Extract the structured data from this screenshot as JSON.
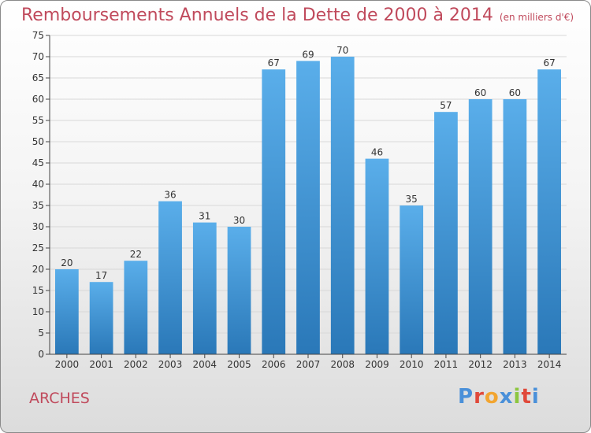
{
  "header": {
    "title": "Remboursements Annuels de la Dette de 2000 à 2014",
    "unit": "(en milliers d'€)"
  },
  "footer": {
    "town": "ARCHES",
    "logo_text": "Proxiti",
    "logo_colors": [
      "#4a90d9",
      "#e0493a",
      "#f2a530",
      "#4a90d9",
      "#8cc63f",
      "#e0493a",
      "#4a90d9"
    ]
  },
  "colors": {
    "title": "#c04a5c",
    "bar_top": "#5aaeea",
    "bar_bottom": "#2a78b8",
    "grid": "#d8d8d8"
  },
  "chart_data": {
    "type": "bar",
    "title": "Remboursements Annuels de la Dette de 2000 à 2014",
    "subtitle": "(en milliers d'€)",
    "xlabel": "",
    "ylabel": "",
    "categories": [
      "2000",
      "2001",
      "2002",
      "2003",
      "2004",
      "2005",
      "2006",
      "2007",
      "2008",
      "2009",
      "2010",
      "2011",
      "2012",
      "2013",
      "2014"
    ],
    "values": [
      20,
      17,
      22,
      36,
      31,
      30,
      67,
      69,
      70,
      46,
      35,
      57,
      60,
      60,
      67
    ],
    "ylim": [
      0,
      75
    ],
    "yticks": [
      0,
      5,
      10,
      15,
      20,
      25,
      30,
      35,
      40,
      45,
      50,
      55,
      60,
      65,
      70,
      75
    ],
    "grid": true,
    "data_labels": true
  }
}
